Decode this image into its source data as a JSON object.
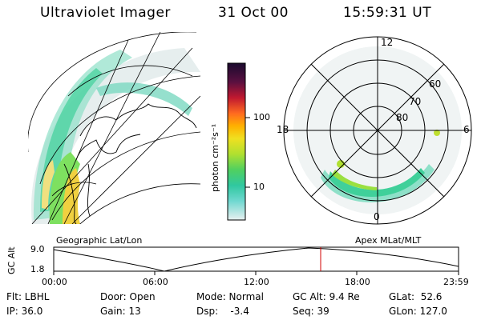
{
  "header": {
    "instrument": "Ultraviolet Imager",
    "date": "31 Oct 00",
    "time": "15:59:31 UT"
  },
  "colorbar": {
    "unit_label": "photon cm⁻²s⁻¹",
    "ticks": [
      "100",
      "10"
    ],
    "colors": [
      "#1a0a2e",
      "#5a1040",
      "#c01830",
      "#ff6a20",
      "#ffb000",
      "#f0e020",
      "#b0e030",
      "#50d060",
      "#30c8a0",
      "#70d8d0",
      "#c0e8e8",
      "#e8f0f0"
    ]
  },
  "polar": {
    "mlt_labels": {
      "top": "12",
      "left": "18",
      "right": "6",
      "bottom": "0"
    },
    "lat_labels": [
      "60",
      "70",
      "80"
    ]
  },
  "map_labels": {
    "left": "Geographic Lat/Lon",
    "right": "Apex MLat/MLT"
  },
  "timeline": {
    "ylabel": "GC Alt",
    "yticks": [
      "9.0",
      "1.8"
    ],
    "xticks": [
      "00:00",
      "06:00",
      "12:00",
      "18:00",
      "23:59"
    ],
    "marker_time": "15:59"
  },
  "info": {
    "flt": "Flt: LBHL",
    "ip": "IP: 36.0",
    "door": "Door: Open",
    "gain": "Gain: 13",
    "mode": "Mode: Normal",
    "dsp": "Dsp:    -3.4",
    "gcalt": "GC Alt: 9.4 Re",
    "seq": "Seq: 39",
    "glat": "GLat:  52.6",
    "glon": "GLon: 127.0"
  }
}
